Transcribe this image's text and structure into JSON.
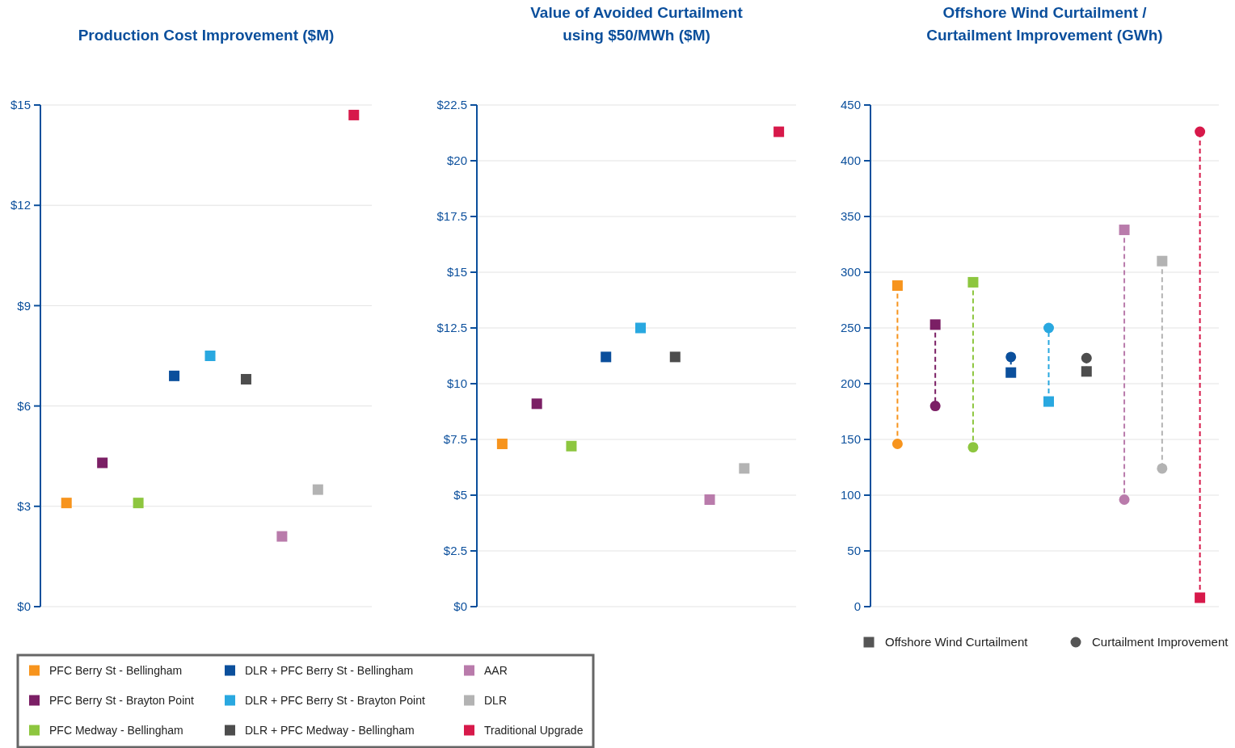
{
  "chart_data": [
    {
      "type": "scatter",
      "title": "Production Cost Improvement ($M)",
      "categories": [
        null,
        null,
        null,
        null,
        null,
        null,
        null,
        null,
        null
      ],
      "series": [
        {
          "name": "PFC Berry St - Bellingham",
          "color": "#f7941d",
          "values": [
            3.1,
            null,
            null,
            null,
            null,
            null,
            null,
            null,
            null
          ]
        },
        {
          "name": "PFC Berry St - Brayton Point",
          "color": "#7b1f65",
          "values": [
            null,
            4.3,
            null,
            null,
            null,
            null,
            null,
            null,
            null
          ]
        },
        {
          "name": "PFC Medway - Bellingham",
          "color": "#8dc63f",
          "values": [
            null,
            null,
            3.1,
            null,
            null,
            null,
            null,
            null,
            null
          ]
        },
        {
          "name": "DLR + PFC Berry St - Bellingham",
          "color": "#0b4f9c",
          "values": [
            null,
            null,
            null,
            6.9,
            null,
            null,
            null,
            null,
            null
          ]
        },
        {
          "name": "DLR + PFC Berry St - Brayton Point",
          "color": "#29a8e0",
          "values": [
            null,
            null,
            null,
            null,
            7.5,
            null,
            null,
            null,
            null
          ]
        },
        {
          "name": "DLR + PFC Medway - Bellingham",
          "color": "#4d4d4d",
          "values": [
            null,
            null,
            null,
            null,
            null,
            6.8,
            null,
            null,
            null
          ]
        },
        {
          "name": "AAR",
          "color": "#b97bab",
          "values": [
            null,
            null,
            null,
            null,
            null,
            null,
            2.1,
            null,
            null
          ]
        },
        {
          "name": "DLR",
          "color": "#b3b3b3",
          "values": [
            null,
            null,
            null,
            null,
            null,
            null,
            null,
            3.5,
            null
          ]
        },
        {
          "name": "Traditional Upgrade",
          "color": "#d7194a",
          "values": [
            null,
            null,
            null,
            null,
            null,
            null,
            null,
            null,
            14.7
          ]
        }
      ],
      "marker": "square",
      "ylim": [
        0,
        15
      ],
      "yticks": [
        {
          "value": 0,
          "label": "$0"
        },
        {
          "value": 3,
          "label": "$3"
        },
        {
          "value": 6,
          "label": "$6"
        },
        {
          "value": 9,
          "label": "$9"
        },
        {
          "value": 12,
          "label": "$12"
        },
        {
          "value": 15,
          "label": "$15"
        }
      ],
      "grid": "y",
      "tick_labels": "y",
      "legend": "bottom"
    },
    {
      "type": "scatter",
      "title": "Value of Avoided Curtailment\nusing $50/MWh ($M)",
      "categories": [
        null,
        null,
        null,
        null,
        null,
        null,
        null,
        null,
        null
      ],
      "values": [
        7.3,
        9.1,
        7.2,
        11.2,
        12.5,
        11.2,
        4.8,
        6.2,
        21.3
      ],
      "colors": [
        "#f7941d",
        "#7b1f65",
        "#8dc63f",
        "#0b4f9c",
        "#29a8e0",
        "#4d4d4d",
        "#b97bab",
        "#b3b3b3",
        "#d7194a"
      ],
      "marker": "square",
      "ylim": [
        0,
        22.5
      ],
      "yticks": [
        {
          "value": 0,
          "label": "$0"
        },
        {
          "value": 2.5,
          "label": "$2.5"
        },
        {
          "value": 5,
          "label": "$5"
        },
        {
          "value": 7.5,
          "label": "$7.5"
        },
        {
          "value": 10,
          "label": "$10"
        },
        {
          "value": 12.5,
          "label": "$12.5"
        },
        {
          "value": 15,
          "label": "$15"
        },
        {
          "value": 17.5,
          "label": "$17.5"
        },
        {
          "value": 20,
          "label": "$20"
        },
        {
          "value": 22.5,
          "label": "$22.5"
        }
      ],
      "grid": "y",
      "tick_labels": "y"
    },
    {
      "type": "scatter",
      "title": "Offshore Wind Curtailment /\nCurtailment Improvement (GWh)",
      "categories": [
        null,
        null,
        null,
        null,
        null,
        null,
        null,
        null,
        null
      ],
      "series": [
        {
          "name": "Offshore Wind Curtailment",
          "marker": "square",
          "values": [
            288,
            253,
            291,
            210,
            184,
            211,
            338,
            310,
            8
          ],
          "colors": [
            "#f7941d",
            "#7b1f65",
            "#8dc63f",
            "#0b4f9c",
            "#29a8e0",
            "#4d4d4d",
            "#b97bab",
            "#b3b3b3",
            "#d7194a"
          ]
        },
        {
          "name": "Curtailment Improvement",
          "marker": "circle",
          "values": [
            146,
            180,
            143,
            224,
            250,
            223,
            96,
            124,
            426
          ],
          "colors": [
            "#f7941d",
            "#7b1f65",
            "#8dc63f",
            "#0b4f9c",
            "#29a8e0",
            "#4d4d4d",
            "#b97bab",
            "#b3b3b3",
            "#d7194a"
          ]
        }
      ],
      "ylim": [
        0,
        450
      ],
      "yticks": [
        0,
        50,
        100,
        150,
        200,
        250,
        300,
        350,
        400,
        450
      ],
      "grid": "y",
      "tick_labels": "y",
      "legend": "bottom"
    }
  ]
}
